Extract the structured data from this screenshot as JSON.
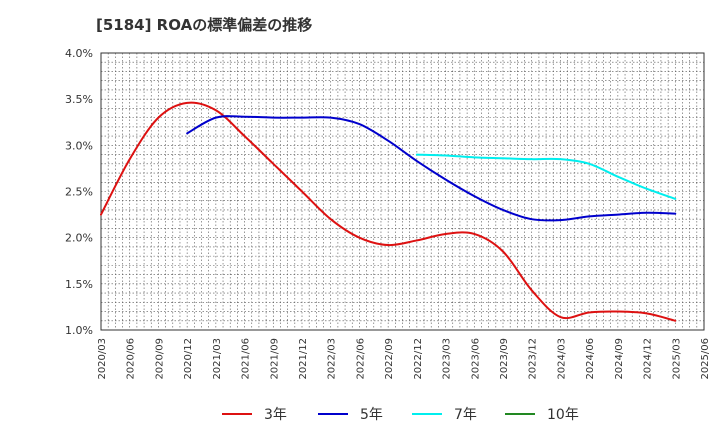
{
  "title": "[5184]  ROAの標準偏差の推移",
  "chart_data": {
    "type": "line",
    "title": "[5184]  ROAの標準偏差の推移",
    "xlabel": "",
    "ylabel": "",
    "ylim": [
      1.0,
      4.0
    ],
    "yticks": [
      "1.0%",
      "1.5%",
      "2.0%",
      "2.5%",
      "3.0%",
      "3.5%",
      "4.0%"
    ],
    "ytick_values": [
      1.0,
      1.5,
      2.0,
      2.5,
      3.0,
      3.5,
      4.0
    ],
    "categories": [
      "2020/03",
      "2020/06",
      "2020/09",
      "2020/12",
      "2021/03",
      "2021/06",
      "2021/09",
      "2021/12",
      "2022/03",
      "2022/06",
      "2022/09",
      "2022/12",
      "2023/03",
      "2023/06",
      "2023/09",
      "2023/12",
      "2024/03",
      "2024/06",
      "2024/09",
      "2024/12",
      "2025/03",
      "2025/06"
    ],
    "grid": true,
    "legend_position": "bottom",
    "series": [
      {
        "name": "3年",
        "color": "#dd1111",
        "points": [
          [
            "2020/03",
            2.25
          ],
          [
            "2020/06",
            2.85
          ],
          [
            "2020/09",
            3.3
          ],
          [
            "2020/12",
            3.46
          ],
          [
            "2021/03",
            3.38
          ],
          [
            "2021/06",
            3.1
          ],
          [
            "2021/09",
            2.8
          ],
          [
            "2021/12",
            2.5
          ],
          [
            "2022/03",
            2.2
          ],
          [
            "2022/06",
            2.0
          ],
          [
            "2022/09",
            1.92
          ],
          [
            "2022/12",
            1.97
          ],
          [
            "2023/03",
            2.04
          ],
          [
            "2023/06",
            2.04
          ],
          [
            "2023/09",
            1.85
          ],
          [
            "2023/12",
            1.43
          ],
          [
            "2024/03",
            1.14
          ],
          [
            "2024/06",
            1.19
          ],
          [
            "2024/09",
            1.2
          ],
          [
            "2024/12",
            1.18
          ],
          [
            "2025/03",
            1.1
          ]
        ]
      },
      {
        "name": "5年",
        "color": "#0000cc",
        "points": [
          [
            "2020/12",
            3.13
          ],
          [
            "2021/03",
            3.3
          ],
          [
            "2021/06",
            3.31
          ],
          [
            "2021/09",
            3.3
          ],
          [
            "2021/12",
            3.3
          ],
          [
            "2022/03",
            3.3
          ],
          [
            "2022/06",
            3.23
          ],
          [
            "2022/09",
            3.05
          ],
          [
            "2022/12",
            2.83
          ],
          [
            "2023/03",
            2.63
          ],
          [
            "2023/06",
            2.45
          ],
          [
            "2023/09",
            2.3
          ],
          [
            "2023/12",
            2.2
          ],
          [
            "2024/03",
            2.19
          ],
          [
            "2024/06",
            2.23
          ],
          [
            "2024/09",
            2.25
          ],
          [
            "2024/12",
            2.27
          ],
          [
            "2025/03",
            2.26
          ]
        ]
      },
      {
        "name": "7年",
        "color": "#00eeee",
        "points": [
          [
            "2022/12",
            2.9
          ],
          [
            "2023/03",
            2.89
          ],
          [
            "2023/06",
            2.87
          ],
          [
            "2023/09",
            2.86
          ],
          [
            "2023/12",
            2.85
          ],
          [
            "2024/03",
            2.85
          ],
          [
            "2024/06",
            2.8
          ],
          [
            "2024/09",
            2.66
          ],
          [
            "2024/12",
            2.53
          ],
          [
            "2025/03",
            2.42
          ]
        ]
      },
      {
        "name": "10年",
        "color": "#228822",
        "points": []
      }
    ]
  }
}
